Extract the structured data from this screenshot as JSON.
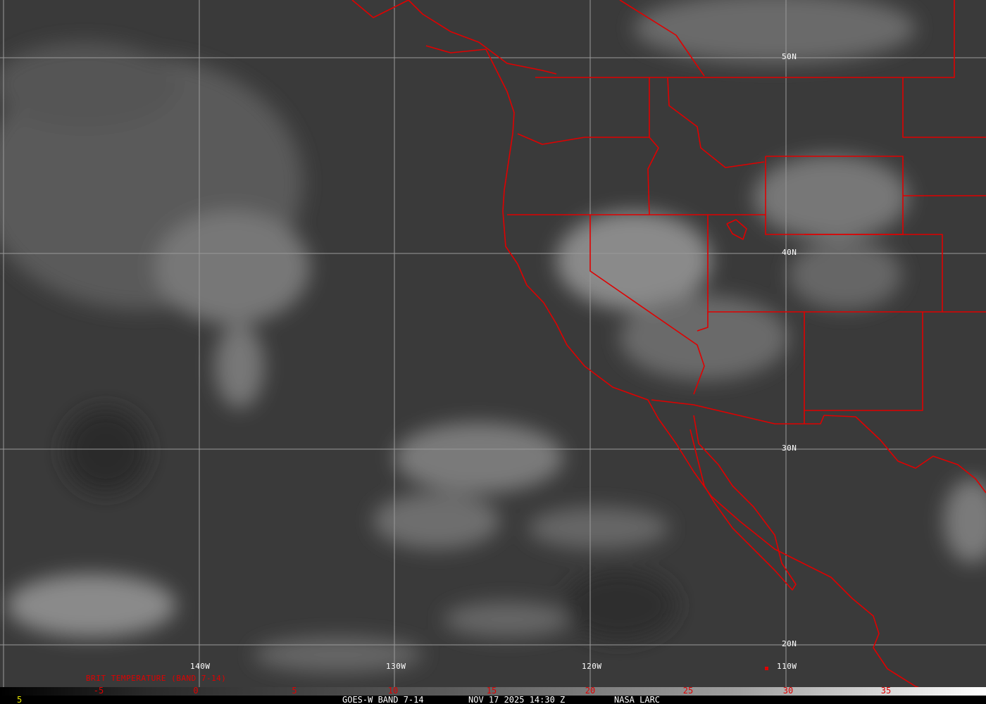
{
  "image": {
    "satellite": "GOES-W",
    "band": "BAND 7-14",
    "footer_text": "GOES-W BAND 7-14",
    "datetime": "NOV 17 2025 14:30 Z",
    "credit": "NASA LARC",
    "frame_number": "5"
  },
  "legend": {
    "title": "BRIT TEMPERATURE (BAND 7-14)",
    "ticks": [
      "-5",
      "0",
      "5",
      "10",
      "15",
      "20",
      "25",
      "30",
      "35"
    ]
  },
  "grid": {
    "longitudes": [
      "140W",
      "130W",
      "120W",
      "110W"
    ],
    "latitudes": [
      "50N",
      "40N",
      "30N",
      "20N"
    ]
  },
  "colors": {
    "boundaries": "#e00000",
    "grid": "#9a9a9a",
    "frame_number": "#e8e800"
  }
}
